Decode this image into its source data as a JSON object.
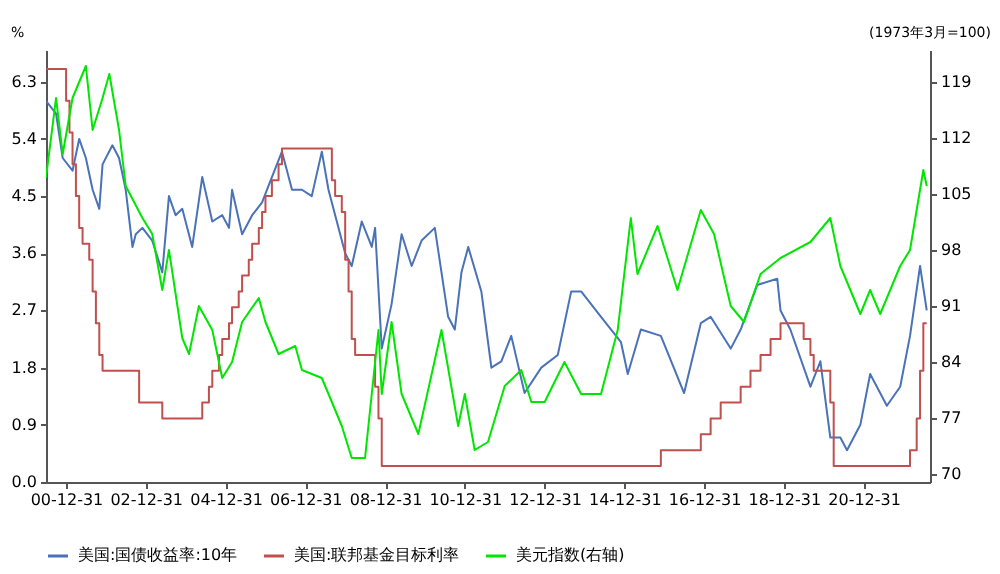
{
  "chart_data": {
    "type": "line",
    "ylabel": "%",
    "y2label": "(1973年3月=100)",
    "legend": "bottom",
    "grid": false,
    "xlim": [
      "2000-07-01",
      "2022-08-31"
    ],
    "xticks": [
      {
        "value": "2000-12-31",
        "label": "00-12-31"
      },
      {
        "value": "2002-12-31",
        "label": "02-12-31"
      },
      {
        "value": "2004-12-31",
        "label": "04-12-31"
      },
      {
        "value": "2006-12-31",
        "label": "06-12-31"
      },
      {
        "value": "2008-12-31",
        "label": "08-12-31"
      },
      {
        "value": "2010-12-31",
        "label": "10-12-31"
      },
      {
        "value": "2012-12-31",
        "label": "12-12-31"
      },
      {
        "value": "2014-12-31",
        "label": "14-12-31"
      },
      {
        "value": "2016-12-31",
        "label": "16-12-31"
      },
      {
        "value": "2018-12-31",
        "label": "18-12-31"
      },
      {
        "value": "2020-12-31",
        "label": "20-12-31"
      }
    ],
    "ylim": [
      0,
      6.8
    ],
    "yticks": [
      {
        "value": 0,
        "label": "0.0"
      },
      0.9,
      1.8,
      2.7,
      3.6,
      4.5,
      5.4,
      6.3
    ],
    "y2lim": [
      69,
      123
    ],
    "y2ticks": [
      70,
      77,
      84,
      91,
      98,
      105,
      112,
      119
    ],
    "series": [
      {
        "name": "美国:国债收益率:10年",
        "color": "#4a72b8",
        "type": "line",
        "x": [
          "2000-07",
          "2000-10",
          "2000-12",
          "2001-03",
          "2001-05",
          "2001-07",
          "2001-09",
          "2001-11",
          "2001-12",
          "2002-03",
          "2002-05",
          "2002-07",
          "2002-09",
          "2002-10",
          "2002-12",
          "2003-03",
          "2003-06",
          "2003-08",
          "2003-10",
          "2003-12",
          "2004-03",
          "2004-06",
          "2004-09",
          "2004-12",
          "2005-02",
          "2005-03",
          "2005-06",
          "2005-09",
          "2005-12",
          "2006-03",
          "2006-06",
          "2006-09",
          "2006-12",
          "2007-03",
          "2007-06",
          "2007-08",
          "2007-11",
          "2008-01",
          "2008-03",
          "2008-06",
          "2008-09",
          "2008-10",
          "2008-12",
          "2009-03",
          "2009-06",
          "2009-09",
          "2009-12",
          "2010-04",
          "2010-08",
          "2010-10",
          "2010-12",
          "2011-02",
          "2011-06",
          "2011-09",
          "2011-12",
          "2012-03",
          "2012-07",
          "2012-12",
          "2013-05",
          "2013-09",
          "2013-12",
          "2014-06",
          "2014-12",
          "2015-02",
          "2015-06",
          "2015-12",
          "2016-07",
          "2016-12",
          "2017-03",
          "2017-09",
          "2017-12",
          "2018-05",
          "2018-11",
          "2018-12",
          "2019-03",
          "2019-09",
          "2019-12",
          "2020-03",
          "2020-06",
          "2020-08",
          "2020-12",
          "2021-03",
          "2021-08",
          "2021-12",
          "2022-03",
          "2022-06",
          "2022-08"
        ],
        "values": [
          6.0,
          5.8,
          5.1,
          4.9,
          5.4,
          5.1,
          4.6,
          4.3,
          5.0,
          5.3,
          5.1,
          4.6,
          3.7,
          3.9,
          4.0,
          3.8,
          3.3,
          4.5,
          4.2,
          4.3,
          3.7,
          4.8,
          4.1,
          4.2,
          4.0,
          4.6,
          3.9,
          4.2,
          4.4,
          4.8,
          5.2,
          4.6,
          4.6,
          4.5,
          5.2,
          4.6,
          4.0,
          3.6,
          3.4,
          4.1,
          3.7,
          4.0,
          2.1,
          2.8,
          3.9,
          3.4,
          3.8,
          4.0,
          2.6,
          2.4,
          3.3,
          3.7,
          3.0,
          1.8,
          1.9,
          2.3,
          1.4,
          1.8,
          2.0,
          3.0,
          3.0,
          2.6,
          2.2,
          1.7,
          2.4,
          2.3,
          1.4,
          2.5,
          2.6,
          2.1,
          2.4,
          3.1,
          3.2,
          2.7,
          2.4,
          1.5,
          1.9,
          0.7,
          0.7,
          0.5,
          0.9,
          1.7,
          1.2,
          1.5,
          2.3,
          3.4,
          2.7
        ]
      },
      {
        "name": "美国:联邦基金目标利率",
        "color": "#c0504d",
        "type": "step",
        "x": [
          "2000-07",
          "2001-01",
          "2001-02",
          "2001-03",
          "2001-04",
          "2001-05",
          "2001-06",
          "2001-08",
          "2001-09",
          "2001-10",
          "2001-11",
          "2001-12",
          "2002-11",
          "2003-06",
          "2004-06",
          "2004-08",
          "2004-09",
          "2004-11",
          "2004-12",
          "2005-02",
          "2005-03",
          "2005-05",
          "2005-06",
          "2005-08",
          "2005-09",
          "2005-11",
          "2005-12",
          "2006-01",
          "2006-03",
          "2006-05",
          "2006-06",
          "2007-09",
          "2007-10",
          "2007-12",
          "2008-01",
          "2008-02",
          "2008-03",
          "2008-04",
          "2008-10",
          "2008-11",
          "2008-12",
          "2015-12",
          "2016-12",
          "2017-03",
          "2017-06",
          "2017-12",
          "2018-03",
          "2018-06",
          "2018-09",
          "2018-12",
          "2019-07",
          "2019-09",
          "2019-10",
          "2020-03",
          "2020-04",
          "2022-03",
          "2022-05",
          "2022-06",
          "2022-07",
          "2022-08"
        ],
        "values": [
          6.5,
          6.0,
          5.5,
          5.0,
          4.5,
          4.0,
          3.75,
          3.5,
          3.0,
          2.5,
          2.0,
          1.75,
          1.25,
          1.0,
          1.25,
          1.5,
          1.75,
          2.0,
          2.25,
          2.5,
          2.75,
          3.0,
          3.25,
          3.5,
          3.75,
          4.0,
          4.25,
          4.5,
          4.75,
          5.0,
          5.25,
          4.75,
          4.5,
          4.25,
          3.5,
          3.0,
          2.25,
          2.0,
          1.5,
          1.0,
          0.25,
          0.5,
          0.75,
          1.0,
          1.25,
          1.5,
          1.75,
          2.0,
          2.25,
          2.5,
          2.25,
          2.0,
          1.75,
          1.25,
          0.25,
          0.5,
          1.0,
          1.75,
          2.5,
          2.5
        ]
      },
      {
        "name": "美元指数(右轴)",
        "color": "#00e600",
        "type": "line",
        "axis": "y2",
        "x": [
          "2000-07",
          "2000-10",
          "2000-12",
          "2001-03",
          "2001-07",
          "2001-09",
          "2001-12",
          "2002-02",
          "2002-05",
          "2002-07",
          "2002-12",
          "2003-03",
          "2003-06",
          "2003-08",
          "2003-12",
          "2004-02",
          "2004-05",
          "2004-09",
          "2004-12",
          "2005-03",
          "2005-06",
          "2005-11",
          "2006-01",
          "2006-05",
          "2006-10",
          "2006-12",
          "2007-06",
          "2007-09",
          "2007-12",
          "2008-03",
          "2008-07",
          "2008-11",
          "2008-12",
          "2009-03",
          "2009-06",
          "2009-11",
          "2010-06",
          "2010-11",
          "2011-01",
          "2011-04",
          "2011-08",
          "2012-01",
          "2012-06",
          "2012-09",
          "2013-01",
          "2013-07",
          "2013-12",
          "2014-06",
          "2014-11",
          "2015-03",
          "2015-05",
          "2015-11",
          "2016-05",
          "2016-12",
          "2017-04",
          "2017-09",
          "2018-01",
          "2018-06",
          "2018-12",
          "2019-09",
          "2020-03",
          "2020-06",
          "2020-12",
          "2021-03",
          "2021-06",
          "2021-12",
          "2022-03",
          "2022-07",
          "2022-08"
        ],
        "values": [
          107,
          117,
          110,
          117,
          121,
          113,
          117,
          120,
          113,
          106,
          102,
          100,
          93,
          98,
          87,
          85,
          91,
          88,
          82,
          84,
          89,
          92,
          89,
          85,
          86,
          83,
          82,
          79,
          76,
          72,
          72,
          88,
          80,
          89,
          80,
          75,
          88,
          76,
          80,
          73,
          74,
          81,
          83,
          79,
          79,
          84,
          80,
          80,
          88,
          102,
          95,
          101,
          93,
          103,
          100,
          91,
          89,
          95,
          97,
          99,
          102,
          96,
          90,
          93,
          90,
          96,
          98,
          108,
          106
        ]
      }
    ]
  }
}
